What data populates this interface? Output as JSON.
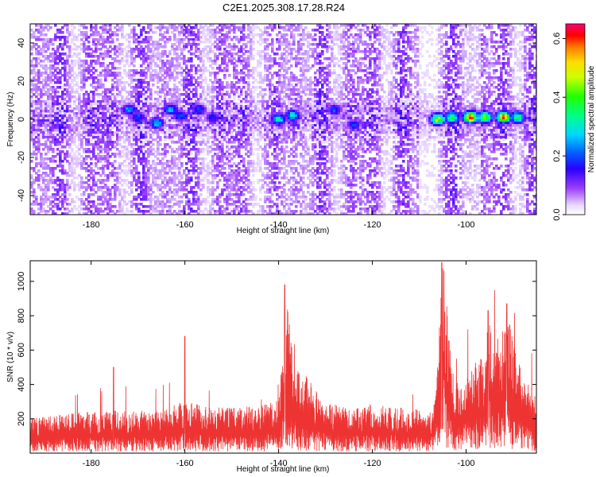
{
  "title": "C2E1.2025.308.17.28.R24",
  "chart_data": [
    {
      "type": "heatmap",
      "panel": "spectrogram",
      "xlabel": "Height of straight line (km)",
      "ylabel": "Frequency (Hz)",
      "xlim": [
        -193,
        -85
      ],
      "ylim": [
        -50,
        50
      ],
      "xticks": [
        -180,
        -160,
        -140,
        -120,
        -100
      ],
      "xtick_labels": [
        "-180",
        "-160",
        "-140",
        "-120",
        "-100"
      ],
      "yticks": [
        -40,
        -20,
        0,
        20,
        40
      ],
      "ytick_labels": [
        "-40",
        "-20",
        "0",
        "20",
        "40"
      ],
      "hot_spots": [
        {
          "x": -172,
          "y": 5,
          "amp": 0.25
        },
        {
          "x": -170,
          "y": 1,
          "amp": 0.22
        },
        {
          "x": -166,
          "y": -2,
          "amp": 0.28
        },
        {
          "x": -163,
          "y": 5,
          "amp": 0.26
        },
        {
          "x": -161,
          "y": 2,
          "amp": 0.22
        },
        {
          "x": -157,
          "y": 5,
          "amp": 0.22
        },
        {
          "x": -154,
          "y": 1,
          "amp": 0.2
        },
        {
          "x": -140,
          "y": 0,
          "amp": 0.33
        },
        {
          "x": -137,
          "y": 2,
          "amp": 0.3
        },
        {
          "x": -128,
          "y": 5,
          "amp": 0.22
        },
        {
          "x": -124,
          "y": -3,
          "amp": 0.2
        },
        {
          "x": -106,
          "y": 0,
          "amp": 0.5
        },
        {
          "x": -103,
          "y": 1,
          "amp": 0.4
        },
        {
          "x": -99,
          "y": 1,
          "amp": 0.62
        },
        {
          "x": -96,
          "y": 1,
          "amp": 0.5
        },
        {
          "x": -92,
          "y": 1,
          "amp": 0.58
        },
        {
          "x": -89,
          "y": 1,
          "amp": 0.4
        }
      ],
      "colorbar": {
        "label": "Normalized spectral amplitude",
        "range": [
          0.0,
          0.65
        ],
        "ticks": [
          0.0,
          0.2,
          0.4,
          0.6
        ],
        "tick_labels": [
          "0.0",
          "0.2",
          "0.4",
          "0.6"
        ]
      }
    },
    {
      "type": "line",
      "panel": "snr",
      "xlabel": "Height of straight line (km)",
      "ylabel": "SNR (10 * v/v)",
      "xlim": [
        -193,
        -85
      ],
      "ylim": [
        0,
        1120
      ],
      "xticks": [
        -180,
        -160,
        -140,
        -120,
        -100
      ],
      "xtick_labels": [
        "-180",
        "-160",
        "-140",
        "-120",
        "-100"
      ],
      "yticks": [
        200,
        400,
        600,
        800,
        1000
      ],
      "ytick_labels": [
        "200",
        "400",
        "600",
        "800",
        "1000"
      ],
      "color": "#ee3333",
      "x": [
        -193,
        -185,
        -175,
        -170,
        -165,
        -160,
        -155,
        -150,
        -145,
        -140,
        -138.5,
        -138,
        -137,
        -130,
        -125,
        -120,
        -115,
        -110,
        -107,
        -106,
        -105,
        -104,
        -103,
        -102,
        -100,
        -98,
        -96,
        -95,
        -94,
        -92,
        -91,
        -90,
        -88,
        -86,
        -85
      ],
      "base": [
        130,
        150,
        160,
        160,
        165,
        200,
        170,
        175,
        175,
        200,
        520,
        560,
        360,
        190,
        175,
        185,
        175,
        165,
        160,
        400,
        800,
        560,
        330,
        260,
        300,
        340,
        380,
        520,
        420,
        470,
        560,
        430,
        290,
        250,
        200
      ],
      "peaks": [
        {
          "x": -175.2,
          "y": 500
        },
        {
          "x": -160.0,
          "y": 680
        },
        {
          "x": -138.7,
          "y": 980
        },
        {
          "x": -105.2,
          "y": 1110
        },
        {
          "x": -95.3,
          "y": 830
        },
        {
          "x": -91.3,
          "y": 870
        }
      ]
    }
  ]
}
